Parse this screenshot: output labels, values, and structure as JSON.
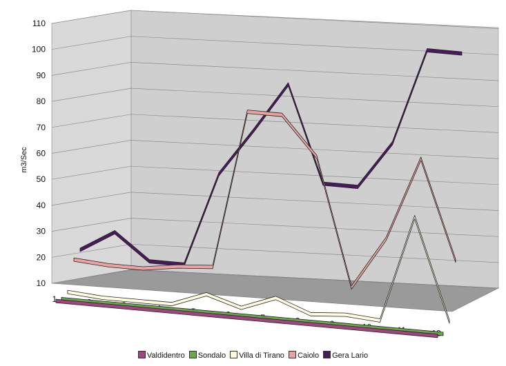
{
  "chart_data": {
    "type": "line",
    "style": "3d",
    "ylabel": "m3/Sec",
    "ylim": [
      10,
      110
    ],
    "yticks": [
      10,
      20,
      30,
      40,
      50,
      60,
      70,
      80,
      90,
      100,
      110
    ],
    "categories": [
      "1",
      "2",
      "3",
      "4",
      "5",
      "6",
      "7",
      "8",
      "9",
      "10",
      "11",
      "12"
    ],
    "grid": true,
    "legend_position": "bottom",
    "series": [
      {
        "name": "Valdidentro",
        "color": "#a0457e",
        "values": [
          2,
          2,
          2,
          2,
          2,
          2,
          2,
          2,
          2,
          2,
          2,
          2
        ]
      },
      {
        "name": "Sondalo",
        "color": "#6aa84f",
        "values": [
          3,
          3,
          3,
          3,
          3,
          3,
          3,
          3,
          3,
          3,
          3,
          3
        ]
      },
      {
        "name": "Villa di Tirano",
        "color": "#fffce0",
        "values": [
          6,
          5,
          5,
          5,
          10,
          6,
          11,
          6,
          7,
          6,
          47,
          8
        ]
      },
      {
        "name": "Caiolo",
        "color": "#e8a3a0",
        "values": [
          19,
          18,
          18,
          20,
          21,
          82,
          82,
          67,
          18,
          38,
          70,
          32
        ]
      },
      {
        "name": "Gera Lario",
        "color": "#4a1a5c",
        "values": [
          23,
          31,
          21,
          21,
          57,
          75,
          94,
          57,
          57,
          75,
          112,
          112
        ]
      }
    ]
  }
}
